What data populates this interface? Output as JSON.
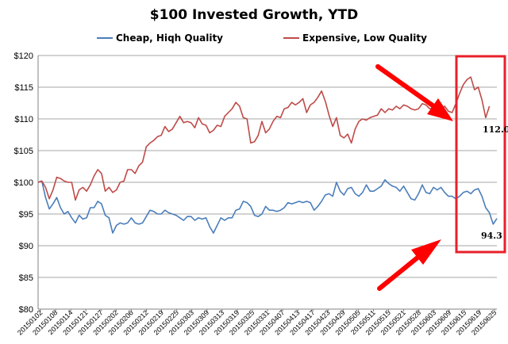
{
  "chart_data": {
    "type": "line",
    "title": "$100 Invested Growth, YTD",
    "xlabel": "",
    "ylabel": "",
    "ylim": [
      80,
      120
    ],
    "yticks": [
      "$80",
      "$85",
      "$90",
      "$95",
      "$100",
      "$105",
      "$110",
      "$115",
      "$120"
    ],
    "grid": "horizontal",
    "legend_position": "top",
    "x_tick_labels": [
      "20150102",
      "20150108",
      "20150114",
      "20150121",
      "20150127",
      "20150202",
      "20150206",
      "20150212",
      "20150219",
      "20150225",
      "20150303",
      "20150309",
      "20150313",
      "20150319",
      "20150325",
      "20150331",
      "20150407",
      "20150413",
      "20150417",
      "20150423",
      "20150429",
      "20150505",
      "20150511",
      "20150515",
      "20150521",
      "20150528",
      "20150603",
      "20150609",
      "20150615",
      "20150619",
      "20150625"
    ],
    "colors": {
      "cheap": "#4a7ebb",
      "expensive": "#be4b48",
      "arrow": "#ff0000",
      "box": "#e8202a",
      "grid": "#a6a6a6"
    },
    "series": [
      {
        "name": "Cheap, Hiqh Quality",
        "color": "#4a7ebb",
        "values": [
          100.0,
          100.2,
          97.6,
          95.8,
          96.6,
          97.6,
          96.0,
          95.0,
          95.4,
          94.4,
          93.6,
          94.8,
          94.2,
          94.4,
          96.0,
          96.0,
          97.0,
          96.6,
          94.8,
          94.4,
          92.0,
          93.2,
          93.6,
          93.4,
          93.6,
          94.4,
          93.6,
          93.4,
          93.6,
          94.6,
          95.6,
          95.4,
          95.0,
          95.0,
          95.6,
          95.2,
          95.0,
          94.8,
          94.4,
          94.0,
          94.6,
          94.6,
          94.0,
          94.4,
          94.2,
          94.4,
          93.0,
          92.0,
          93.2,
          94.4,
          94.0,
          94.4,
          94.4,
          95.6,
          95.8,
          97.0,
          96.8,
          96.2,
          94.8,
          94.6,
          95.0,
          96.2,
          95.6,
          95.6,
          95.4,
          95.6,
          96.0,
          96.8,
          96.6,
          96.8,
          97.0,
          96.8,
          97.0,
          96.8,
          95.6,
          96.2,
          97.0,
          98.0,
          98.2,
          97.8,
          100.0,
          98.6,
          98.0,
          99.0,
          99.2,
          98.2,
          97.8,
          98.4,
          99.6,
          98.6,
          98.6,
          99.0,
          99.4,
          100.4,
          99.8,
          99.4,
          99.2,
          98.6,
          99.4,
          98.4,
          97.4,
          97.2,
          98.2,
          99.6,
          98.4,
          98.2,
          99.2,
          98.8,
          99.2,
          98.4,
          97.8,
          97.8,
          97.4,
          97.8,
          98.4,
          98.6,
          98.2,
          98.8,
          99.0,
          97.8,
          96.0,
          95.2,
          93.4,
          94.3
        ]
      },
      {
        "name": "Expensive, Low Quality",
        "color": "#be4b48",
        "values": [
          100.0,
          100.2,
          99.2,
          97.4,
          98.8,
          100.8,
          100.6,
          100.2,
          100.0,
          100.0,
          97.2,
          98.8,
          99.2,
          98.6,
          99.6,
          101.0,
          102.0,
          101.4,
          98.6,
          99.2,
          98.4,
          98.8,
          100.0,
          100.2,
          102.0,
          102.0,
          101.4,
          102.6,
          103.2,
          105.6,
          106.2,
          106.6,
          107.2,
          107.4,
          108.8,
          108.0,
          108.4,
          109.4,
          110.4,
          109.4,
          109.6,
          109.4,
          108.6,
          110.2,
          109.2,
          109.0,
          107.8,
          108.2,
          109.0,
          108.8,
          110.4,
          111.0,
          111.6,
          112.6,
          112.0,
          110.2,
          110.0,
          106.2,
          106.4,
          107.4,
          109.6,
          107.8,
          108.4,
          109.6,
          110.4,
          110.2,
          111.6,
          111.8,
          112.6,
          112.2,
          112.6,
          113.2,
          111.0,
          112.2,
          112.6,
          113.4,
          114.4,
          112.8,
          110.6,
          108.8,
          110.2,
          107.4,
          107.0,
          107.6,
          106.2,
          108.4,
          109.6,
          110.0,
          109.8,
          110.2,
          110.4,
          110.6,
          111.6,
          111.0,
          111.6,
          111.4,
          112.0,
          111.6,
          112.2,
          112.0,
          111.6,
          111.4,
          111.6,
          112.4,
          112.2,
          111.6,
          111.8,
          111.0,
          111.4,
          112.0,
          111.2,
          111.0,
          112.4,
          114.0,
          115.4,
          116.2,
          116.6,
          114.6,
          115.0,
          113.0,
          110.2,
          112.0
        ]
      }
    ],
    "end_labels": {
      "expensive": "112.0",
      "cheap": "94.3"
    }
  }
}
